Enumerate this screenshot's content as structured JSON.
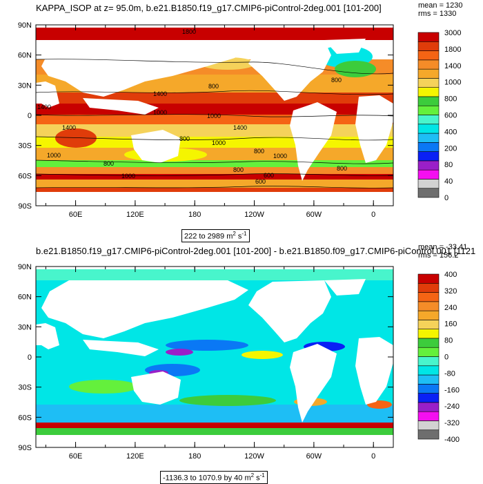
{
  "panels": [
    {
      "id": "top",
      "title": "KAPPA_ISOP at z=  95.0m, b.e21.B1850.f19_g17.CMIP6-piControl-2deg.001 [101-200]",
      "stats": {
        "mean": "mean = 1230",
        "rms": "rms = 1330"
      },
      "range_label": "222 to 2989",
      "range_units": "m",
      "range_exp2": "2",
      "range_units2": "s",
      "range_exp1": "-1",
      "colorbar": {
        "colors": [
          "#6e6e6e",
          "#d2d2d2",
          "#f50ff0",
          "#9a1fc8",
          "#0a20f5",
          "#0a78f5",
          "#1ebef5",
          "#00e6e6",
          "#48f5cc",
          "#64f03c",
          "#3ccc3c",
          "#f5f500",
          "#f5d25a",
          "#f5a82a",
          "#f58c28",
          "#f56414",
          "#e03c0a",
          "#c80000"
        ],
        "labels": [
          "0",
          "40",
          "80",
          "200",
          "400",
          "600",
          "800",
          "1000",
          "1400",
          "1800",
          "3000"
        ]
      },
      "lat_labels": [
        "90N",
        "60N",
        "30N",
        "0",
        "30S",
        "60S",
        "90S"
      ],
      "lon_labels": [
        "60E",
        "120E",
        "180",
        "120W",
        "60W",
        "0"
      ],
      "contour_labels": [
        "1800",
        "800",
        "1400",
        "800",
        "1000",
        "1000",
        "1400",
        "1400",
        "800",
        "1000",
        "1000",
        "800",
        "800",
        "800",
        "1000",
        "600",
        "800",
        "1000",
        "600",
        "1400"
      ]
    },
    {
      "id": "bottom",
      "title": "b.e21.B1850.f19_g17.CMIP6-piControl-2deg.001 [101-200] - b.e21.B1850.f09_g17.CMIP6-piControl.001 [1121",
      "stats": {
        "mean": "mean = -33.41",
        "rms": "rms = 156.2"
      },
      "range_label": "-1136.3 to 1070.9 by 40",
      "range_units": "m",
      "range_exp2": "2",
      "range_units2": "s",
      "range_exp1": "-1",
      "colorbar": {
        "colors": [
          "#6e6e6e",
          "#d2d2d2",
          "#f50ff0",
          "#9a1fc8",
          "#0a20f5",
          "#0a78f5",
          "#1ebef5",
          "#00e6e6",
          "#48f5cc",
          "#64f03c",
          "#3ccc3c",
          "#f5f500",
          "#f5d25a",
          "#f5a82a",
          "#f58c28",
          "#f56414",
          "#e03c0a",
          "#c80000"
        ],
        "labels": [
          "-400",
          "-320",
          "-240",
          "-160",
          "-80",
          "0",
          "80",
          "160",
          "240",
          "320",
          "400"
        ]
      },
      "lat_labels": [
        "90N",
        "60N",
        "30N",
        "0",
        "30S",
        "60S",
        "90S"
      ],
      "lon_labels": [
        "60E",
        "120E",
        "180",
        "120W",
        "60W",
        "0"
      ]
    }
  ]
}
